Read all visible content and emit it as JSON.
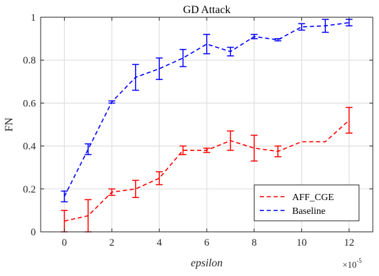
{
  "chart_data": {
    "type": "line",
    "title": "GD Attack",
    "xlabel": "epsilon",
    "ylabel": "FN",
    "x_exponent_base": "×10",
    "x_exponent_power": "-5",
    "xlim": [
      -1,
      13
    ],
    "ylim": [
      0,
      1
    ],
    "xticks": [
      0,
      2,
      4,
      6,
      8,
      10,
      12
    ],
    "yticks": [
      0,
      0.2,
      0.4,
      0.6,
      0.8,
      1
    ],
    "xtick_labels": [
      "0",
      "2",
      "4",
      "6",
      "8",
      "10",
      "12"
    ],
    "ytick_labels": [
      "0",
      "0.2",
      "0.4",
      "0.6",
      "0.8",
      "1"
    ],
    "grid": true,
    "legend_position": "bottom-right",
    "x": [
      0,
      1,
      2,
      3,
      4,
      5,
      6,
      7,
      8,
      9,
      10,
      11,
      12
    ],
    "series": [
      {
        "name": "AFF_CGE",
        "color": "#ff0000",
        "line_style": "dashed",
        "values": [
          0.05,
          0.075,
          0.185,
          0.2,
          0.25,
          0.38,
          0.38,
          0.425,
          0.39,
          0.375,
          0.42,
          0.42,
          0.52
        ],
        "errors": [
          0.05,
          0.075,
          0.015,
          0.04,
          0.03,
          0.02,
          0.01,
          0.045,
          0.06,
          0.025,
          0.0,
          0.0,
          0.06
        ]
      },
      {
        "name": "Baseline",
        "color": "#0000ff",
        "line_style": "dashed",
        "values": [
          0.165,
          0.385,
          0.605,
          0.72,
          0.76,
          0.81,
          0.875,
          0.84,
          0.91,
          0.895,
          0.955,
          0.96,
          0.975
        ],
        "errors": [
          0.025,
          0.025,
          0.005,
          0.06,
          0.05,
          0.04,
          0.045,
          0.02,
          0.01,
          0.005,
          0.015,
          0.03,
          0.015
        ]
      }
    ]
  }
}
